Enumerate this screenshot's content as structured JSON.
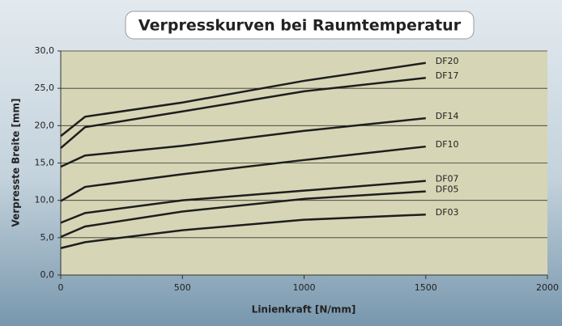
{
  "chart_data": {
    "type": "line",
    "title": "Verpresskurven bei Raumtemperatur",
    "xlabel": "Linienkraft [N/mm]",
    "ylabel": "Verpresste Breite [mm]",
    "x": [
      0,
      100,
      500,
      1000,
      1500
    ],
    "series": [
      {
        "name": "DF20",
        "color": "#1e1e1e",
        "values": [
          18.6,
          21.2,
          23.1,
          26.0,
          28.4
        ]
      },
      {
        "name": "DF17",
        "color": "#1e1e1e",
        "values": [
          17.0,
          19.8,
          21.9,
          24.6,
          26.4
        ]
      },
      {
        "name": "DF14",
        "color": "#1e1e1e",
        "values": [
          14.5,
          16.0,
          17.3,
          19.3,
          21.0
        ]
      },
      {
        "name": "DF10",
        "color": "#1e1e1e",
        "values": [
          9.9,
          11.8,
          13.5,
          15.4,
          17.2
        ]
      },
      {
        "name": "DF07",
        "color": "#1e1e1e",
        "values": [
          7.0,
          8.3,
          10.0,
          11.3,
          12.6
        ]
      },
      {
        "name": "DF05",
        "color": "#1e1e1e",
        "values": [
          5.1,
          6.5,
          8.5,
          10.2,
          11.2
        ]
      },
      {
        "name": "DF03",
        "color": "#1e1e1e",
        "values": [
          3.6,
          4.4,
          6.0,
          7.4,
          8.1
        ]
      }
    ],
    "xlim": [
      0,
      2000
    ],
    "xticks": [
      0,
      500,
      1000,
      1500,
      2000
    ],
    "ylim": [
      0,
      30
    ],
    "yticks": [
      {
        "value": 0,
        "label": "0,0"
      },
      {
        "value": 5,
        "label": "5,0"
      },
      {
        "value": 10,
        "label": "10,0"
      },
      {
        "value": 15,
        "label": "15,0"
      },
      {
        "value": 20,
        "label": "20,0"
      },
      {
        "value": 25,
        "label": "25,0"
      },
      {
        "value": 30,
        "label": "30,0"
      }
    ],
    "grid": true
  }
}
